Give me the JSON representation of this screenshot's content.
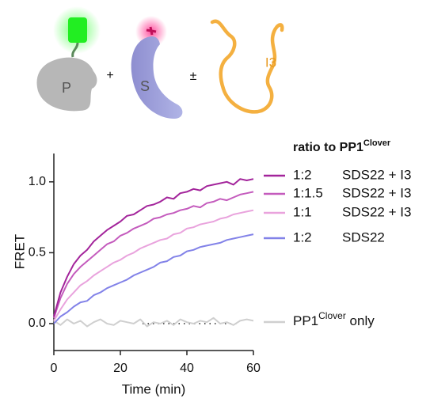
{
  "illustration": {
    "labels": [
      "P",
      "S",
      "I3"
    ],
    "operators": [
      "+",
      "±"
    ]
  },
  "chart_data": {
    "type": "line",
    "x_label": "Time (min)",
    "y_label": "FRET",
    "legend_title": {
      "text": "ratio to PP1",
      "sup": "Clover"
    },
    "x": [
      0,
      2,
      4,
      6,
      8,
      10,
      12,
      14,
      16,
      18,
      20,
      22,
      24,
      26,
      28,
      30,
      32,
      34,
      36,
      38,
      40,
      42,
      44,
      46,
      48,
      50,
      52,
      54,
      56,
      58,
      60
    ],
    "xlim": [
      0,
      60
    ],
    "xticks": [
      0,
      20,
      40,
      60
    ],
    "ylim": [
      -0.19,
      1.2
    ],
    "yticks": [
      {
        "value": 0,
        "label": "0.0"
      },
      {
        "value": 0.5,
        "label": "0.5"
      },
      {
        "value": 1,
        "label": "1.0"
      }
    ],
    "series": [
      {
        "name": "1:2",
        "condition": "SDS22 + I3",
        "color": "#a3249b",
        "values": [
          0.05,
          0.22,
          0.33,
          0.42,
          0.48,
          0.52,
          0.58,
          0.62,
          0.66,
          0.69,
          0.72,
          0.76,
          0.77,
          0.8,
          0.83,
          0.84,
          0.86,
          0.89,
          0.88,
          0.92,
          0.93,
          0.95,
          0.94,
          0.97,
          0.98,
          0.99,
          1.0,
          0.98,
          1.02,
          1.01,
          1.02
        ]
      },
      {
        "name": "1:1.5",
        "condition": "SDS22 + I3",
        "color": "#c45bbd",
        "values": [
          0.04,
          0.18,
          0.28,
          0.35,
          0.4,
          0.44,
          0.48,
          0.52,
          0.56,
          0.58,
          0.62,
          0.64,
          0.67,
          0.69,
          0.71,
          0.74,
          0.75,
          0.77,
          0.78,
          0.8,
          0.81,
          0.83,
          0.82,
          0.85,
          0.86,
          0.88,
          0.87,
          0.89,
          0.91,
          0.92,
          0.93
        ]
      },
      {
        "name": "1:1",
        "condition": "SDS22 + I3",
        "color": "#e9a3dd",
        "values": [
          0.02,
          0.1,
          0.17,
          0.22,
          0.27,
          0.3,
          0.34,
          0.37,
          0.4,
          0.43,
          0.45,
          0.48,
          0.5,
          0.53,
          0.55,
          0.57,
          0.59,
          0.6,
          0.63,
          0.64,
          0.67,
          0.68,
          0.7,
          0.71,
          0.72,
          0.74,
          0.75,
          0.77,
          0.78,
          0.79,
          0.8
        ]
      },
      {
        "name": "1:2",
        "condition": "SDS22",
        "color": "#8282e8",
        "values": [
          0.0,
          0.05,
          0.08,
          0.12,
          0.15,
          0.16,
          0.2,
          0.22,
          0.25,
          0.27,
          0.29,
          0.31,
          0.34,
          0.36,
          0.38,
          0.4,
          0.43,
          0.44,
          0.47,
          0.48,
          0.51,
          0.52,
          0.54,
          0.55,
          0.56,
          0.57,
          0.59,
          0.6,
          0.61,
          0.62,
          0.63
        ]
      },
      {
        "name": "PP1",
        "name_sup": "Clover",
        "name_suffix": " only",
        "color": "#cfcfcf",
        "values": [
          0.02,
          -0.01,
          0.03,
          0.0,
          0.02,
          -0.02,
          0.01,
          0.03,
          0.0,
          -0.01,
          0.02,
          0.01,
          0.0,
          0.03,
          -0.02,
          0.01,
          0.0,
          0.02,
          -0.01,
          0.03,
          0.01,
          0.0,
          0.02,
          0.01,
          0.04,
          0.0,
          0.01,
          -0.01,
          0.02,
          0.03,
          0.02
        ]
      }
    ]
  }
}
